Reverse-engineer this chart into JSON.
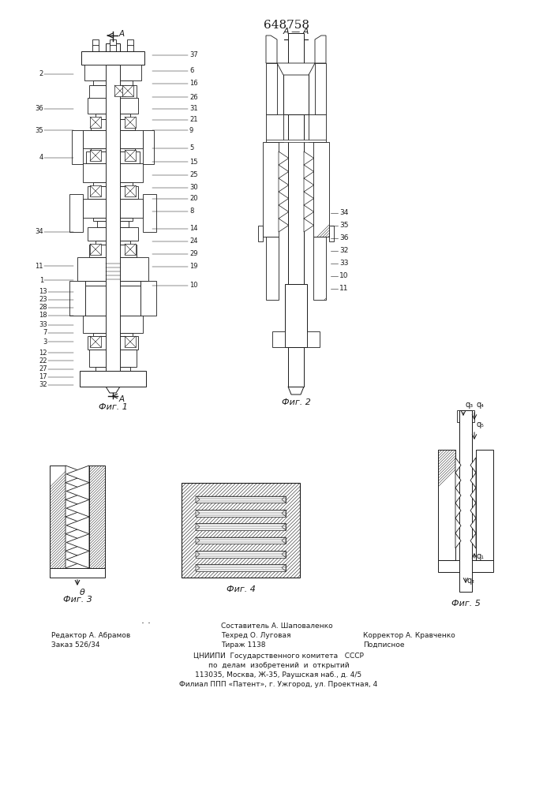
{
  "bg": "#ffffff",
  "lc": "#1a1a1a",
  "title": "648758",
  "footer": {
    "editor": "Редактор А. Абрамов",
    "order": "Заказ 526/34",
    "composer": "Составитель А. Шаповаленко",
    "techred": "Техред О. Луговая",
    "tirazh": "Тираж 1138",
    "korrektor": "Корректор А. Кравченко",
    "podpis": "Подписное",
    "org1": "ЦНИИПИ  Государственного комитета   СССР",
    "org2": "по  делам  изобретений  и  открытий",
    "org3": "113035, Москва, Ж-35, Раушская наб., д. 4/5",
    "org4": "Филиал ППП «Патент», г. Ужгород, ул. Проектная, 4"
  }
}
